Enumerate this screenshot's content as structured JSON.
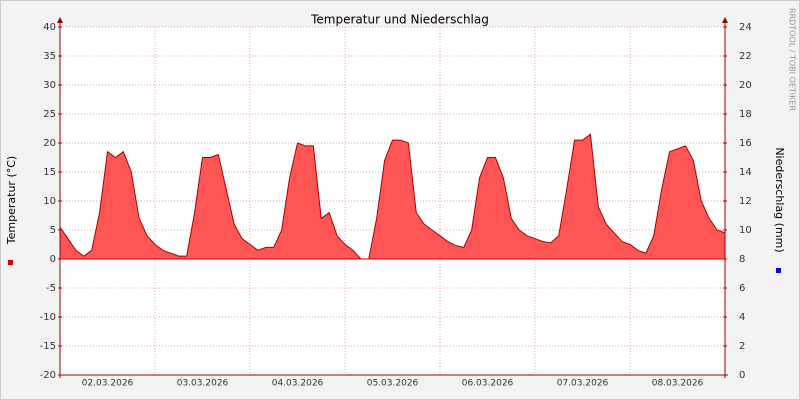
{
  "chart_data": {
    "type": "area",
    "title": "Temperatur und Niederschlag",
    "y_label": "Temperatur (°C)",
    "y2_label": "Niederschlag (mm)",
    "watermark": "RRDTOOL / TOBI OETIKER",
    "x_tick_labels": [
      "02.03.2026",
      "03.03.2026",
      "04.03.2026",
      "05.03.2026",
      "06.03.2026",
      "07.03.2026",
      "08.03.2026"
    ],
    "ylim": [
      -20,
      40
    ],
    "yticks": [
      -20,
      -15,
      -10,
      -5,
      0,
      5,
      10,
      15,
      20,
      25,
      30,
      35,
      40
    ],
    "y2lim": [
      0,
      24
    ],
    "y2ticks": [
      0,
      2,
      4,
      6,
      8,
      10,
      12,
      14,
      16,
      18,
      20,
      22,
      24
    ],
    "grid": true,
    "series": [
      {
        "color": "#ff5555",
        "values": [
          5.5,
          3.5,
          1.5,
          0.5,
          1.5,
          8,
          18.5,
          17.5,
          18.5,
          15,
          7,
          4,
          2.5,
          1.5,
          1,
          0.5,
          0.5,
          8,
          17.5,
          17.5,
          18,
          12,
          6,
          3.5,
          2.5,
          1.5,
          2,
          2,
          5,
          14,
          20,
          19.5,
          19.5,
          7,
          8,
          4,
          2.5,
          1.5,
          0,
          0,
          7,
          17,
          20.5,
          20.5,
          20,
          8,
          6,
          5,
          4,
          3,
          2.3,
          2,
          5,
          14,
          17.5,
          17.5,
          14,
          7,
          5,
          4,
          3.5,
          3,
          2.8,
          4,
          12,
          20.5,
          20.5,
          21.5,
          9,
          6,
          4.5,
          3,
          2.5,
          1.5,
          1,
          4,
          12,
          18.5,
          19,
          19.5,
          17,
          10,
          7,
          5,
          4.5
        ]
      }
    ]
  }
}
